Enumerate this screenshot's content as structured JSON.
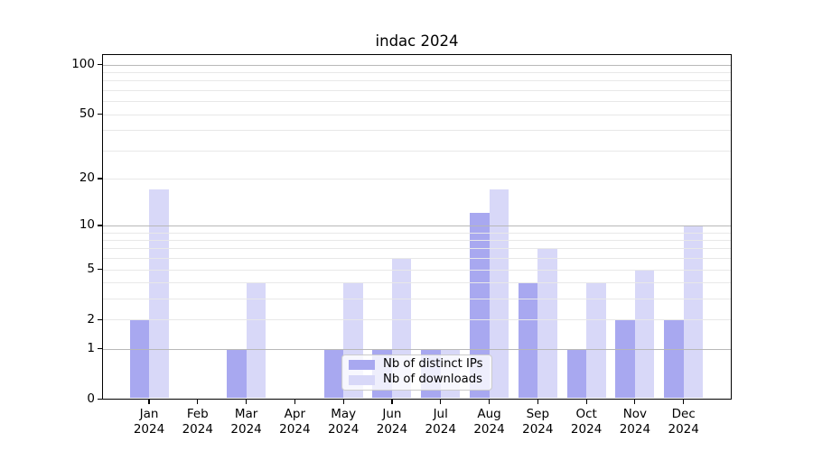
{
  "title": "indac 2024",
  "chart_data": {
    "type": "bar",
    "title": "indac 2024",
    "categories": [
      "Jan 2024",
      "Feb 2024",
      "Mar 2024",
      "Apr 2024",
      "May 2024",
      "Jun 2024",
      "Jul 2024",
      "Aug 2024",
      "Sep 2024",
      "Oct 2024",
      "Nov 2024",
      "Dec 2024"
    ],
    "series": [
      {
        "name": "Nb of distinct IPs",
        "color": "#a8a8f0",
        "values": [
          2,
          0,
          1,
          0,
          1,
          1,
          1,
          12,
          4,
          1,
          2,
          2
        ]
      },
      {
        "name": "Nb of downloads",
        "color": "#d8d8f8",
        "values": [
          17,
          0,
          4,
          0,
          4,
          6,
          1,
          17,
          7,
          4,
          5,
          10
        ]
      }
    ],
    "xlabel": "",
    "ylabel": "",
    "yscale": "log1p",
    "ylim": [
      0,
      117
    ],
    "y_tick_labels": [
      0,
      1,
      2,
      5,
      10,
      20,
      50,
      100
    ],
    "y_decade_gridlines": [
      1,
      10,
      100
    ],
    "y_minor_gridlines": [
      2,
      3,
      4,
      5,
      6,
      7,
      8,
      9,
      20,
      30,
      40,
      50,
      60,
      70,
      80,
      90
    ],
    "grid": true,
    "legend_position": "lower center",
    "colors": {
      "background": "#ffffff",
      "axis": "#000000",
      "major_grid": "#b8b8b8",
      "minor_grid": "#e8e8e8",
      "text": "#000000"
    }
  }
}
